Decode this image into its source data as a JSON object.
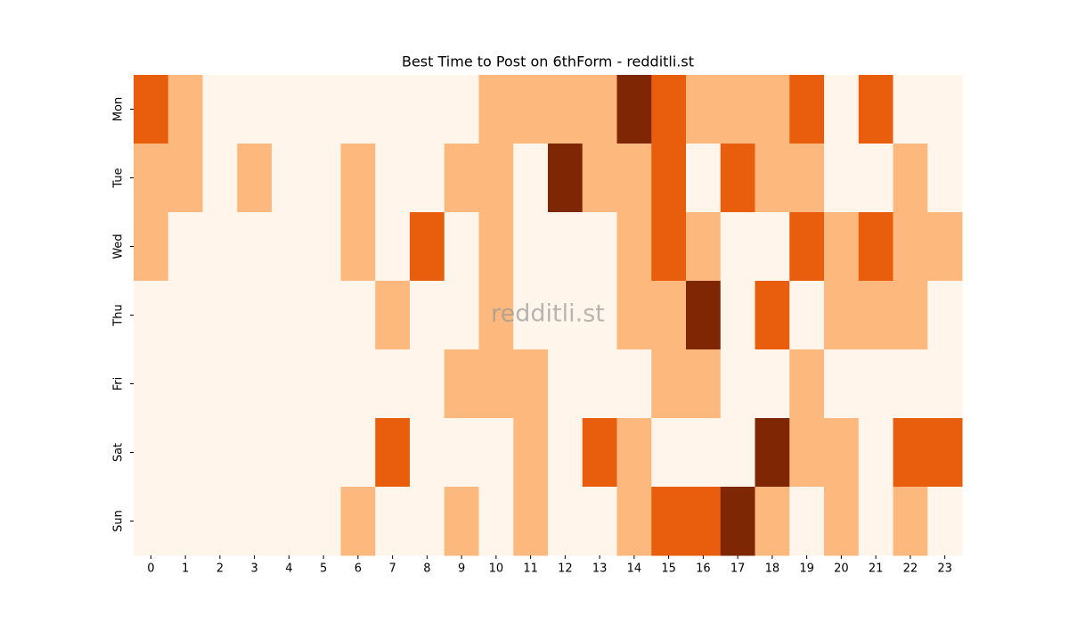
{
  "chart_data": {
    "type": "heatmap",
    "title": "Best Time to Post on 6thForm - redditli.st",
    "watermark": "redditli.st",
    "x_categories": [
      0,
      1,
      2,
      3,
      4,
      5,
      6,
      7,
      8,
      9,
      10,
      11,
      12,
      13,
      14,
      15,
      16,
      17,
      18,
      19,
      20,
      21,
      22,
      23
    ],
    "y_categories": [
      "Mon",
      "Tue",
      "Wed",
      "Thu",
      "Fri",
      "Sat",
      "Sun"
    ],
    "colors": [
      "#fff5eb",
      "#fdb97d",
      "#e95e0d",
      "#7f2704"
    ],
    "values": [
      [
        2,
        1,
        0,
        0,
        0,
        0,
        0,
        0,
        0,
        0,
        1,
        1,
        1,
        1,
        3,
        2,
        1,
        1,
        1,
        2,
        0,
        2,
        0,
        0
      ],
      [
        1,
        1,
        0,
        1,
        0,
        0,
        1,
        0,
        0,
        1,
        1,
        0,
        3,
        1,
        1,
        2,
        0,
        2,
        1,
        1,
        0,
        0,
        1,
        0
      ],
      [
        1,
        0,
        0,
        0,
        0,
        0,
        1,
        0,
        2,
        0,
        1,
        0,
        0,
        0,
        1,
        2,
        1,
        0,
        0,
        2,
        1,
        2,
        1,
        1
      ],
      [
        0,
        0,
        0,
        0,
        0,
        0,
        0,
        1,
        0,
        0,
        1,
        0,
        0,
        0,
        1,
        1,
        3,
        0,
        2,
        0,
        1,
        1,
        1,
        0
      ],
      [
        0,
        0,
        0,
        0,
        0,
        0,
        0,
        0,
        0,
        1,
        1,
        1,
        0,
        0,
        0,
        1,
        1,
        0,
        0,
        1,
        0,
        0,
        0,
        0
      ],
      [
        0,
        0,
        0,
        0,
        0,
        0,
        0,
        2,
        0,
        0,
        0,
        1,
        0,
        2,
        1,
        0,
        0,
        0,
        3,
        1,
        1,
        0,
        2,
        2
      ],
      [
        0,
        0,
        0,
        0,
        0,
        0,
        1,
        0,
        0,
        1,
        0,
        1,
        0,
        0,
        1,
        2,
        2,
        3,
        1,
        0,
        1,
        0,
        1,
        0
      ]
    ]
  }
}
